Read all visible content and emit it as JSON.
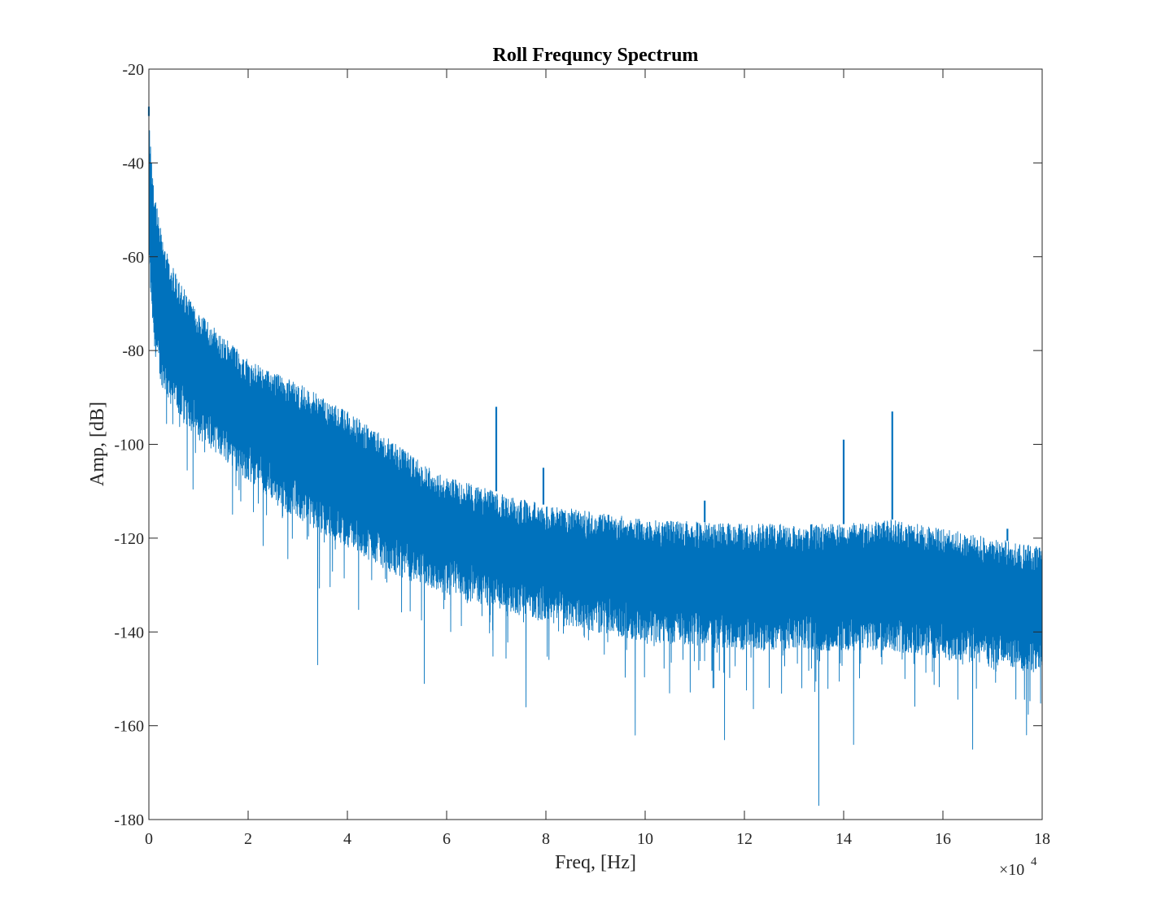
{
  "chart_data": {
    "type": "line",
    "title": "Roll Frequncy Spectrum",
    "xlabel": "Freq, [Hz]",
    "ylabel": "Amp, [dB]",
    "x_exponent_base": "×10",
    "x_exponent_power": "4",
    "x_scale_factor": 10000,
    "xlim": [
      0,
      18
    ],
    "ylim": [
      -180,
      -20
    ],
    "x_ticks": [
      0,
      2,
      4,
      6,
      8,
      10,
      12,
      14,
      16,
      18
    ],
    "y_ticks": [
      -20,
      -40,
      -60,
      -80,
      -100,
      -120,
      -140,
      -160,
      -180
    ],
    "grid": false,
    "series": [
      {
        "color": "#0072BD",
        "envelope": {
          "x": [
            0,
            0.1,
            0.2,
            0.4,
            0.6,
            1.0,
            1.5,
            2.0,
            3.0,
            4.0,
            5.0,
            6.0,
            7.0,
            8.0,
            10.0,
            12.0,
            14.0,
            15.0,
            16.0,
            17.0,
            18.0
          ],
          "upper": [
            -30,
            -45,
            -52,
            -60,
            -65,
            -72,
            -77,
            -82,
            -87,
            -93,
            -100,
            -107,
            -110,
            -113,
            -116,
            -117,
            -117,
            -116,
            -118,
            -120,
            -122
          ],
          "lower": [
            -60,
            -75,
            -82,
            -87,
            -90,
            -95,
            -99,
            -104,
            -112,
            -118,
            -124,
            -128,
            -131,
            -134,
            -138,
            -140,
            -140,
            -140,
            -142,
            -143,
            -145
          ]
        },
        "peaks": [
          {
            "x": 0.0,
            "y": -28
          },
          {
            "x": 7.0,
            "y": -92
          },
          {
            "x": 7.95,
            "y": -105
          },
          {
            "x": 11.2,
            "y": -112
          },
          {
            "x": 14.0,
            "y": -99
          },
          {
            "x": 14.98,
            "y": -93
          },
          {
            "x": 17.3,
            "y": -118
          }
        ],
        "dips": [
          {
            "x": 3.4,
            "y": -147
          },
          {
            "x": 5.55,
            "y": -151
          },
          {
            "x": 7.6,
            "y": -156
          },
          {
            "x": 9.8,
            "y": -162
          },
          {
            "x": 11.6,
            "y": -163
          },
          {
            "x": 13.5,
            "y": -177
          },
          {
            "x": 14.2,
            "y": -164
          },
          {
            "x": 16.6,
            "y": -165
          }
        ]
      }
    ]
  }
}
